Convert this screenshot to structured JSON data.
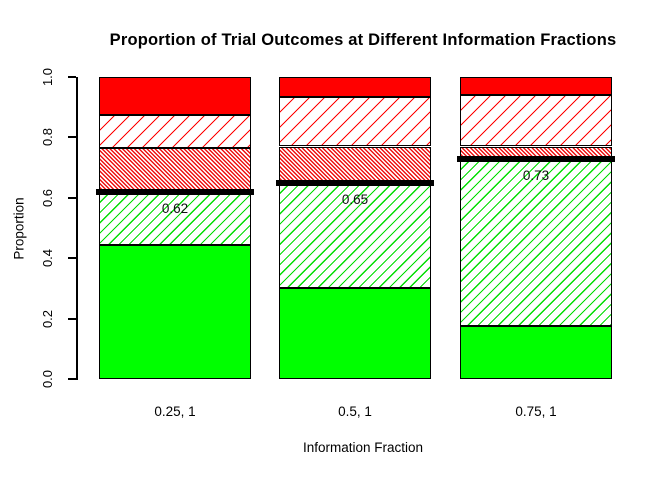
{
  "chart_data": {
    "type": "bar",
    "stacked": true,
    "title": "Proportion of Trial Outcomes at Different Information Fractions",
    "xlabel": "Information Fraction",
    "ylabel": "Proportion",
    "ylim": [
      0,
      1
    ],
    "grid": false,
    "legend": "none",
    "y_ticks": [
      "0.0",
      "0.2",
      "0.4",
      "0.6",
      "0.8",
      "1.0"
    ],
    "categories": [
      "0.25, 1",
      "0.5, 1",
      "0.75, 1"
    ],
    "series": [
      {
        "name": "solid-green",
        "pattern": "solid",
        "color": "#00FF00",
        "values": [
          0.445,
          0.3,
          0.175
        ]
      },
      {
        "name": "green-hatch",
        "pattern": "diagonal-lines-45",
        "color": "#00DD00",
        "values": [
          0.175,
          0.35,
          0.555
        ]
      },
      {
        "name": "red-dense-hatch",
        "pattern": "dense-diagonal-135",
        "color": "#EE1111",
        "values": [
          0.145,
          0.12,
          0.04
        ]
      },
      {
        "name": "red-sparse-hatch",
        "pattern": "diagonal-lines-45",
        "color": "#FF0000",
        "values": [
          0.11,
          0.165,
          0.17
        ]
      },
      {
        "name": "solid-red",
        "pattern": "solid",
        "color": "#FF0000",
        "values": [
          0.125,
          0.065,
          0.06
        ]
      }
    ],
    "threshold_lines": [
      {
        "category": "0.25, 1",
        "value": 0.62,
        "label": "0.62"
      },
      {
        "category": "0.5, 1",
        "value": 0.65,
        "label": "0.65"
      },
      {
        "category": "0.75, 1",
        "value": 0.73,
        "label": "0.73"
      }
    ],
    "colors": {
      "solid_green": "#00FF00",
      "solid_red": "#FF0000",
      "hatch_green": "#00DD00",
      "hatch_red": "#FF0000",
      "threshold_line": "#000000",
      "axis": "#000000",
      "background": "#FFFFFF"
    }
  }
}
